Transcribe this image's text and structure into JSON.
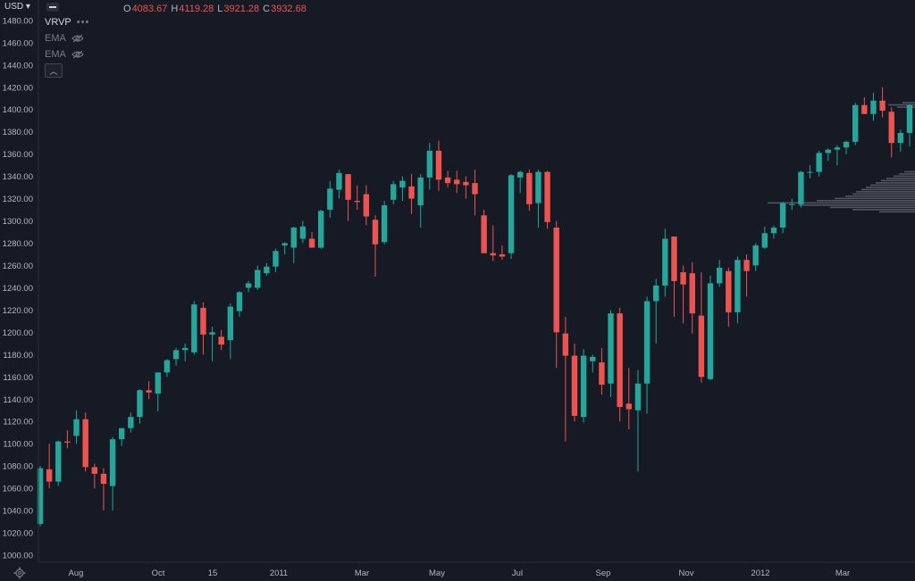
{
  "header": {
    "currency": "USD",
    "ohlc": [
      {
        "key": "O",
        "value": "4083.67"
      },
      {
        "key": "H",
        "value": "4119.28"
      },
      {
        "key": "L",
        "value": "3921.28"
      },
      {
        "key": "C",
        "value": "3932.68"
      }
    ]
  },
  "indicators": [
    {
      "name": "VRVP",
      "menu": "•••"
    },
    {
      "name": "EMA"
    },
    {
      "name": "EMA"
    }
  ],
  "colors": {
    "background": "#161a25",
    "up": "#26a69a",
    "down": "#ef5350",
    "text": "#b2b5be",
    "volume_profile": "#5d606b"
  },
  "chart_data": {
    "type": "candlestick",
    "ylim": [
      990,
      1488
    ],
    "yticks": [
      1000,
      1020,
      1040,
      1060,
      1080,
      1100,
      1120,
      1140,
      1160,
      1180,
      1200,
      1220,
      1240,
      1260,
      1280,
      1300,
      1320,
      1340,
      1360,
      1380,
      1400,
      1420,
      1440,
      1460,
      1480
    ],
    "xticks": [
      "Aug",
      "Oct",
      "15",
      "2011",
      "Mar",
      "May",
      "Jul",
      "Sep",
      "Nov",
      "2012",
      "Mar"
    ],
    "candles": [
      {
        "o": 1028,
        "h": 1080,
        "l": 1026,
        "c": 1078
      },
      {
        "o": 1077,
        "h": 1100,
        "l": 1060,
        "c": 1066
      },
      {
        "o": 1066,
        "h": 1103,
        "l": 1062,
        "c": 1102
      },
      {
        "o": 1102,
        "h": 1112,
        "l": 1096,
        "c": 1101
      },
      {
        "o": 1107,
        "h": 1130,
        "l": 1100,
        "c": 1122
      },
      {
        "o": 1122,
        "h": 1128,
        "l": 1075,
        "c": 1079
      },
      {
        "o": 1079,
        "h": 1082,
        "l": 1060,
        "c": 1073
      },
      {
        "o": 1073,
        "h": 1078,
        "l": 1040,
        "c": 1064
      },
      {
        "o": 1062,
        "h": 1106,
        "l": 1040,
        "c": 1104
      },
      {
        "o": 1104,
        "h": 1112,
        "l": 1098,
        "c": 1114
      },
      {
        "o": 1114,
        "h": 1128,
        "l": 1110,
        "c": 1124
      },
      {
        "o": 1124,
        "h": 1149,
        "l": 1118,
        "c": 1148
      },
      {
        "o": 1148,
        "h": 1156,
        "l": 1140,
        "c": 1146
      },
      {
        "o": 1145,
        "h": 1163,
        "l": 1129,
        "c": 1164
      },
      {
        "o": 1164,
        "h": 1176,
        "l": 1160,
        "c": 1175
      },
      {
        "o": 1176,
        "h": 1186,
        "l": 1170,
        "c": 1184
      },
      {
        "o": 1184,
        "h": 1190,
        "l": 1174,
        "c": 1186
      },
      {
        "o": 1182,
        "h": 1228,
        "l": 1180,
        "c": 1225
      },
      {
        "o": 1222,
        "h": 1227,
        "l": 1180,
        "c": 1198
      },
      {
        "o": 1198,
        "h": 1205,
        "l": 1174,
        "c": 1200
      },
      {
        "o": 1196,
        "h": 1202,
        "l": 1184,
        "c": 1189
      },
      {
        "o": 1193,
        "h": 1226,
        "l": 1176,
        "c": 1223
      },
      {
        "o": 1219,
        "h": 1237,
        "l": 1214,
        "c": 1236
      },
      {
        "o": 1240,
        "h": 1246,
        "l": 1236,
        "c": 1244
      },
      {
        "o": 1240,
        "h": 1260,
        "l": 1238,
        "c": 1256
      },
      {
        "o": 1253,
        "h": 1262,
        "l": 1251,
        "c": 1259
      },
      {
        "o": 1259,
        "h": 1275,
        "l": 1254,
        "c": 1273
      },
      {
        "o": 1278,
        "h": 1281,
        "l": 1270,
        "c": 1280
      },
      {
        "o": 1276,
        "h": 1295,
        "l": 1262,
        "c": 1294
      },
      {
        "o": 1284,
        "h": 1300,
        "l": 1280,
        "c": 1295
      },
      {
        "o": 1284,
        "h": 1290,
        "l": 1276,
        "c": 1276
      },
      {
        "o": 1276,
        "h": 1310,
        "l": 1275,
        "c": 1309
      },
      {
        "o": 1310,
        "h": 1336,
        "l": 1303,
        "c": 1329
      },
      {
        "o": 1328,
        "h": 1346,
        "l": 1320,
        "c": 1343
      },
      {
        "o": 1342,
        "h": 1341,
        "l": 1300,
        "c": 1319
      },
      {
        "o": 1318,
        "h": 1332,
        "l": 1310,
        "c": 1317
      },
      {
        "o": 1324,
        "h": 1332,
        "l": 1296,
        "c": 1304
      },
      {
        "o": 1301,
        "h": 1305,
        "l": 1250,
        "c": 1279
      },
      {
        "o": 1281,
        "h": 1318,
        "l": 1279,
        "c": 1314
      },
      {
        "o": 1319,
        "h": 1336,
        "l": 1315,
        "c": 1333
      },
      {
        "o": 1330,
        "h": 1340,
        "l": 1318,
        "c": 1336
      },
      {
        "o": 1331,
        "h": 1342,
        "l": 1306,
        "c": 1320
      },
      {
        "o": 1314,
        "h": 1342,
        "l": 1294,
        "c": 1339
      },
      {
        "o": 1339,
        "h": 1370,
        "l": 1328,
        "c": 1363
      },
      {
        "o": 1363,
        "h": 1372,
        "l": 1327,
        "c": 1337
      },
      {
        "o": 1339,
        "h": 1345,
        "l": 1330,
        "c": 1334
      },
      {
        "o": 1337,
        "h": 1345,
        "l": 1325,
        "c": 1333
      },
      {
        "o": 1335,
        "h": 1340,
        "l": 1320,
        "c": 1332
      },
      {
        "o": 1334,
        "h": 1346,
        "l": 1305,
        "c": 1324
      },
      {
        "o": 1305,
        "h": 1310,
        "l": 1272,
        "c": 1271
      },
      {
        "o": 1271,
        "h": 1296,
        "l": 1264,
        "c": 1269
      },
      {
        "o": 1270,
        "h": 1278,
        "l": 1265,
        "c": 1268
      },
      {
        "o": 1271,
        "h": 1342,
        "l": 1266,
        "c": 1341
      },
      {
        "o": 1339,
        "h": 1345,
        "l": 1325,
        "c": 1344
      },
      {
        "o": 1343,
        "h": 1346,
        "l": 1309,
        "c": 1315
      },
      {
        "o": 1316,
        "h": 1346,
        "l": 1294,
        "c": 1344
      },
      {
        "o": 1344,
        "h": 1345,
        "l": 1293,
        "c": 1299
      },
      {
        "o": 1294,
        "h": 1300,
        "l": 1168,
        "c": 1200
      },
      {
        "o": 1199,
        "h": 1214,
        "l": 1102,
        "c": 1179
      },
      {
        "o": 1179,
        "h": 1190,
        "l": 1120,
        "c": 1125
      },
      {
        "o": 1124,
        "h": 1185,
        "l": 1119,
        "c": 1179
      },
      {
        "o": 1174,
        "h": 1180,
        "l": 1164,
        "c": 1178
      },
      {
        "o": 1173,
        "h": 1186,
        "l": 1144,
        "c": 1153
      },
      {
        "o": 1154,
        "h": 1220,
        "l": 1142,
        "c": 1217
      },
      {
        "o": 1217,
        "h": 1222,
        "l": 1120,
        "c": 1133
      },
      {
        "o": 1136,
        "h": 1168,
        "l": 1113,
        "c": 1131
      },
      {
        "o": 1130,
        "h": 1166,
        "l": 1075,
        "c": 1154
      },
      {
        "o": 1154,
        "h": 1232,
        "l": 1127,
        "c": 1228
      },
      {
        "o": 1228,
        "h": 1248,
        "l": 1190,
        "c": 1242
      },
      {
        "o": 1242,
        "h": 1293,
        "l": 1232,
        "c": 1284
      },
      {
        "o": 1286,
        "h": 1284,
        "l": 1214,
        "c": 1246
      },
      {
        "o": 1254,
        "h": 1260,
        "l": 1208,
        "c": 1243
      },
      {
        "o": 1253,
        "h": 1263,
        "l": 1199,
        "c": 1217
      },
      {
        "o": 1215,
        "h": 1254,
        "l": 1155,
        "c": 1160
      },
      {
        "o": 1158,
        "h": 1251,
        "l": 1157,
        "c": 1244
      },
      {
        "o": 1244,
        "h": 1265,
        "l": 1241,
        "c": 1258
      },
      {
        "o": 1255,
        "h": 1258,
        "l": 1205,
        "c": 1218
      },
      {
        "o": 1218,
        "h": 1268,
        "l": 1208,
        "c": 1265
      },
      {
        "o": 1265,
        "h": 1270,
        "l": 1232,
        "c": 1255
      },
      {
        "o": 1260,
        "h": 1280,
        "l": 1255,
        "c": 1278
      },
      {
        "o": 1276,
        "h": 1295,
        "l": 1275,
        "c": 1289
      },
      {
        "o": 1289,
        "h": 1296,
        "l": 1284,
        "c": 1294
      },
      {
        "o": 1294,
        "h": 1317,
        "l": 1289,
        "c": 1316
      },
      {
        "o": 1315,
        "h": 1320,
        "l": 1310,
        "c": 1315
      },
      {
        "o": 1315,
        "h": 1345,
        "l": 1312,
        "c": 1344
      },
      {
        "o": 1344,
        "h": 1350,
        "l": 1338,
        "c": 1344
      },
      {
        "o": 1344,
        "h": 1363,
        "l": 1340,
        "c": 1361
      },
      {
        "o": 1361,
        "h": 1365,
        "l": 1354,
        "c": 1364
      },
      {
        "o": 1364,
        "h": 1368,
        "l": 1350,
        "c": 1366
      },
      {
        "o": 1366,
        "h": 1372,
        "l": 1360,
        "c": 1371
      },
      {
        "o": 1371,
        "h": 1406,
        "l": 1368,
        "c": 1404
      },
      {
        "o": 1404,
        "h": 1411,
        "l": 1396,
        "c": 1396
      },
      {
        "o": 1396,
        "h": 1415,
        "l": 1390,
        "c": 1408
      },
      {
        "o": 1408,
        "h": 1420,
        "l": 1393,
        "c": 1399
      },
      {
        "o": 1398,
        "h": 1402,
        "l": 1357,
        "c": 1370
      },
      {
        "o": 1370,
        "h": 1382,
        "l": 1362,
        "c": 1379
      },
      {
        "o": 1379,
        "h": 1405,
        "l": 1367,
        "c": 1404
      }
    ]
  }
}
